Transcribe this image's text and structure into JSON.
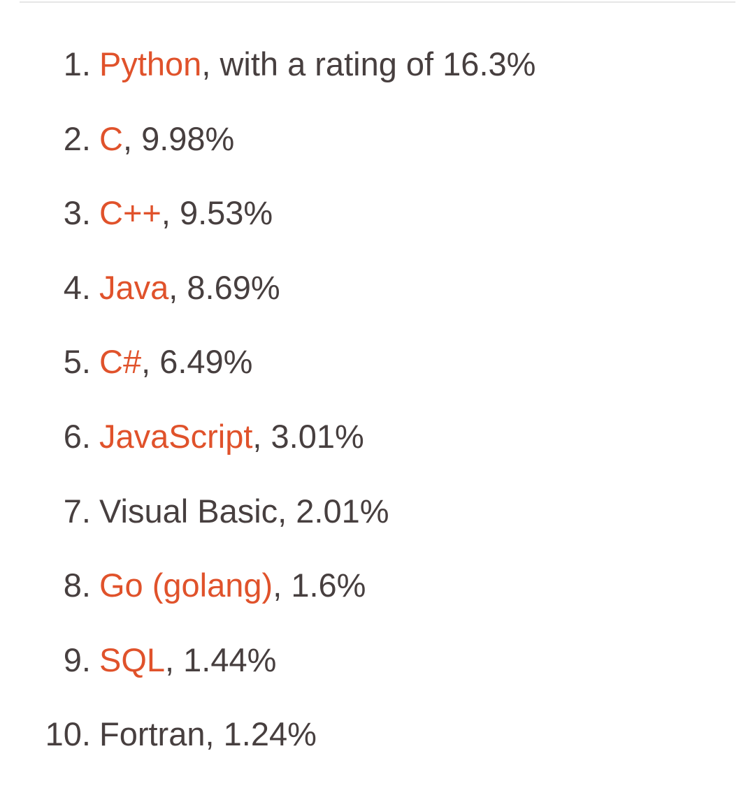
{
  "ranking": {
    "items": [
      {
        "number": "1.",
        "name": "Python",
        "linked": true,
        "suffix": ", with a rating of 16.3%"
      },
      {
        "number": "2.",
        "name": "C",
        "linked": true,
        "suffix": ", 9.98%"
      },
      {
        "number": "3.",
        "name": "C++",
        "linked": true,
        "suffix": ", 9.53%"
      },
      {
        "number": "4.",
        "name": "Java",
        "linked": true,
        "suffix": ", 8.69%"
      },
      {
        "number": "5.",
        "name": "C#",
        "linked": true,
        "suffix": ", 6.49%"
      },
      {
        "number": "6.",
        "name": "JavaScript",
        "linked": true,
        "suffix": ", 3.01%"
      },
      {
        "number": "7.",
        "name": "Visual Basic",
        "linked": false,
        "suffix": ", 2.01%"
      },
      {
        "number": "8.",
        "name": "Go (golang)",
        "linked": true,
        "suffix": ", 1.6%"
      },
      {
        "number": "9.",
        "name": "SQL",
        "linked": true,
        "suffix": ", 1.44%"
      },
      {
        "number": "10.",
        "name": "Fortran",
        "linked": false,
        "suffix": ", 1.24%"
      }
    ]
  },
  "colors": {
    "text": "#473f3f",
    "link": "#e0522b",
    "rule": "#e6e6e6"
  }
}
